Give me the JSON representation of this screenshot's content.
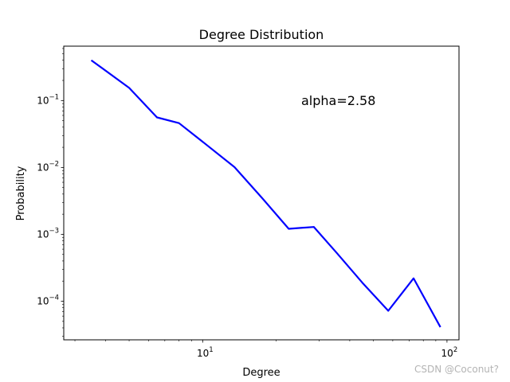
{
  "chart_data": {
    "type": "line",
    "title": "Degree Distribution",
    "xlabel": "Degree",
    "ylabel": "Probability",
    "xscale": "log",
    "yscale": "log",
    "xlim": [
      2.7,
      112
    ],
    "ylim": [
      2.65e-05,
      0.65
    ],
    "grid": false,
    "annotation": "alpha=2.58",
    "x_ticks": [
      {
        "value": 10,
        "base": "10",
        "exp": "1"
      },
      {
        "value": 100,
        "base": "10",
        "exp": "2"
      }
    ],
    "y_ticks": [
      {
        "value": 0.1,
        "base": "10",
        "exp": "−1"
      },
      {
        "value": 0.01,
        "base": "10",
        "exp": "−2"
      },
      {
        "value": 0.001,
        "base": "10",
        "exp": "−3"
      },
      {
        "value": 0.0001,
        "base": "10",
        "exp": "−4"
      }
    ],
    "series": [
      {
        "color": "#0000ff",
        "x": [
          3.5,
          5.0,
          6.5,
          8.0,
          10.5,
          13.5,
          17.5,
          22.5,
          28.5,
          35.5,
          45.0,
          57.5,
          73.0,
          94.0
        ],
        "y": [
          0.4,
          0.155,
          0.056,
          0.046,
          0.021,
          0.0101,
          0.0035,
          0.00121,
          0.00129,
          0.00052,
          0.00019,
          7.2e-05,
          0.00022,
          4.1e-05
        ]
      }
    ]
  },
  "watermark": "CSDN @Coconut?"
}
